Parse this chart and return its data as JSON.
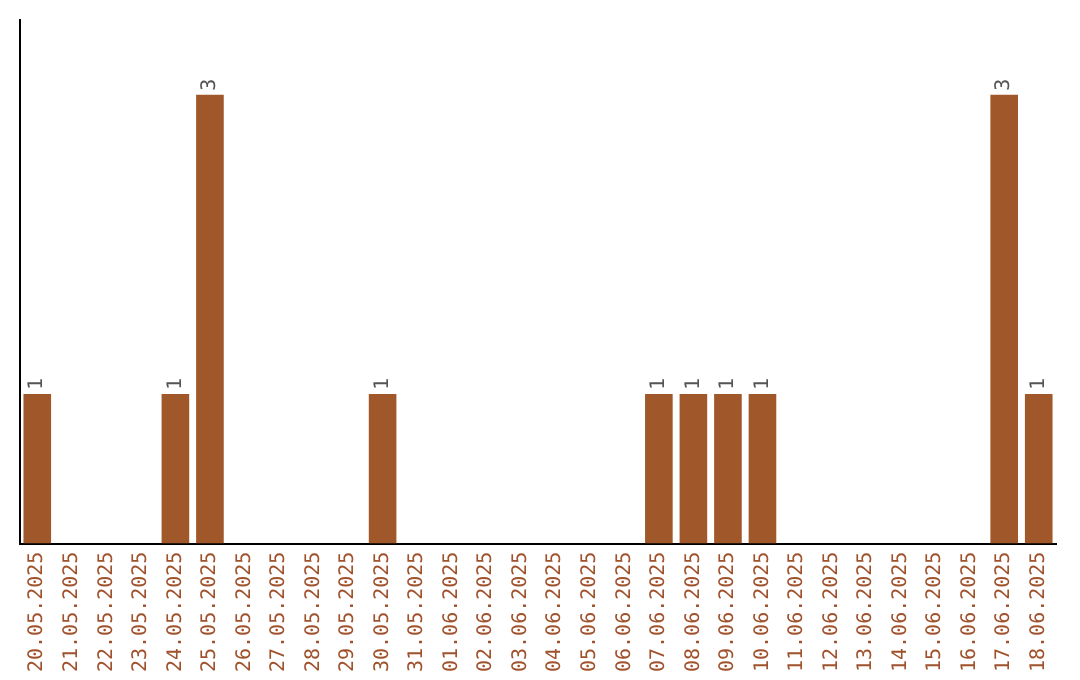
{
  "chart_data": {
    "type": "bar",
    "categories": [
      "20.05.2025",
      "21.05.2025",
      "22.05.2025",
      "23.05.2025",
      "24.05.2025",
      "25.05.2025",
      "26.05.2025",
      "27.05.2025",
      "28.05.2025",
      "29.05.2025",
      "30.05.2025",
      "31.05.2025",
      "01.06.2025",
      "02.06.2025",
      "03.06.2025",
      "04.06.2025",
      "05.06.2025",
      "06.06.2025",
      "07.06.2025",
      "08.06.2025",
      "09.06.2025",
      "10.06.2025",
      "11.06.2025",
      "12.06.2025",
      "13.06.2025",
      "14.06.2025",
      "15.06.2025",
      "16.06.2025",
      "17.06.2025",
      "18.06.2025"
    ],
    "values": [
      1,
      0,
      0,
      0,
      1,
      3,
      0,
      0,
      0,
      0,
      1,
      0,
      0,
      0,
      0,
      0,
      0,
      0,
      1,
      1,
      1,
      1,
      0,
      0,
      0,
      0,
      0,
      0,
      3,
      1
    ],
    "value_labels": [
      "1",
      null,
      null,
      null,
      "1",
      "3",
      null,
      null,
      null,
      null,
      "1",
      null,
      null,
      null,
      null,
      null,
      null,
      null,
      "1",
      "1",
      "1",
      "1",
      null,
      null,
      null,
      null,
      null,
      null,
      "3",
      "1"
    ],
    "color": "#a0582a",
    "grid": false,
    "legend": false
  }
}
